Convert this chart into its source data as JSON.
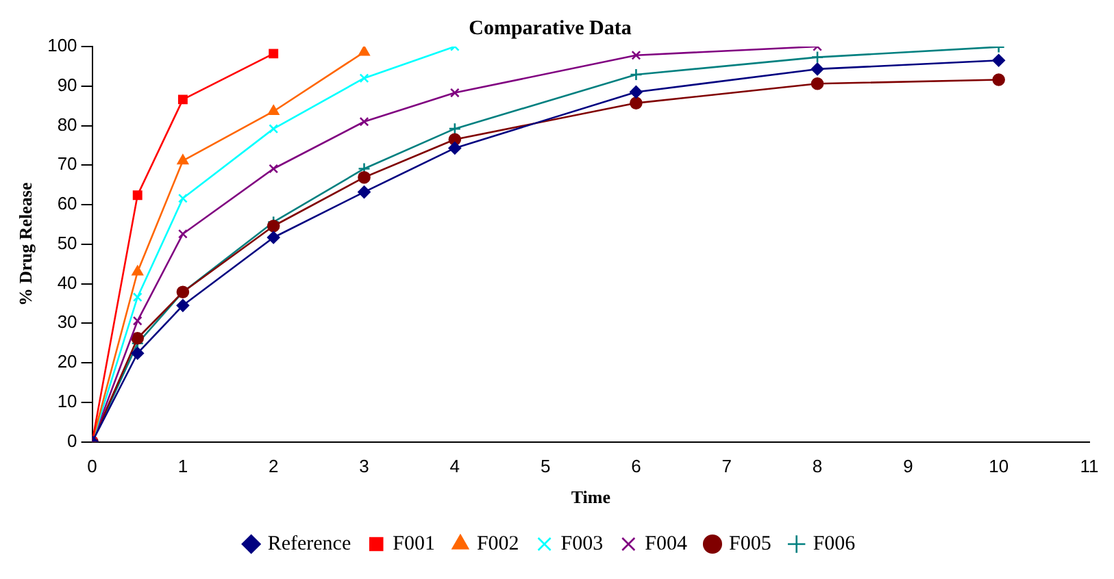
{
  "chart_data": {
    "type": "line",
    "title": "Comparative Data",
    "xlabel": "Time",
    "ylabel": "% Drug Release",
    "x": [
      0,
      0.5,
      1,
      2,
      3,
      4,
      6,
      8,
      10
    ],
    "xlim": [
      0,
      11
    ],
    "xticks": [
      0,
      1,
      2,
      3,
      4,
      5,
      6,
      7,
      8,
      9,
      10,
      11
    ],
    "ylim": [
      0,
      100
    ],
    "yticks": [
      0,
      10,
      20,
      30,
      40,
      50,
      60,
      70,
      80,
      90,
      100
    ],
    "grid": false,
    "legend": "bottom",
    "series": [
      {
        "name": "Reference",
        "color": "#000080",
        "marker": "diamond",
        "values": [
          0,
          22.4,
          34.5,
          51.7,
          63.2,
          74.3,
          88.5,
          94.3,
          96.5
        ]
      },
      {
        "name": "F001",
        "color": "#ff0000",
        "marker": "square",
        "x": [
          0,
          0.5,
          1,
          2
        ],
        "values": [
          0,
          62.4,
          86.6,
          98.2
        ]
      },
      {
        "name": "F002",
        "color": "#ff6600",
        "marker": "triangle",
        "x": [
          0,
          0.5,
          1,
          2,
          3
        ],
        "values": [
          0,
          43,
          71.1,
          83.6,
          98.6
        ]
      },
      {
        "name": "F003",
        "color": "#00ffff",
        "marker": "cross",
        "x": [
          0,
          0.5,
          1,
          2,
          3,
          4
        ],
        "values": [
          0,
          36.6,
          61.6,
          79.2,
          92,
          100
        ]
      },
      {
        "name": "F004",
        "color": "#800080",
        "marker": "cross",
        "x": [
          0,
          0.5,
          1,
          2,
          3,
          4,
          6,
          8
        ],
        "values": [
          0,
          30.6,
          52.6,
          69.1,
          81,
          88.3,
          97.8,
          100
        ]
      },
      {
        "name": "F005",
        "color": "#800000",
        "marker": "circle",
        "values": [
          0,
          26.2,
          37.9,
          54.6,
          66.9,
          76.5,
          85.7,
          90.6,
          91.6
        ]
      },
      {
        "name": "F006",
        "color": "#008080",
        "marker": "plus",
        "values": [
          0,
          24.9,
          37.9,
          55.6,
          69.1,
          79.2,
          92.9,
          97.3,
          99.9
        ]
      }
    ]
  }
}
